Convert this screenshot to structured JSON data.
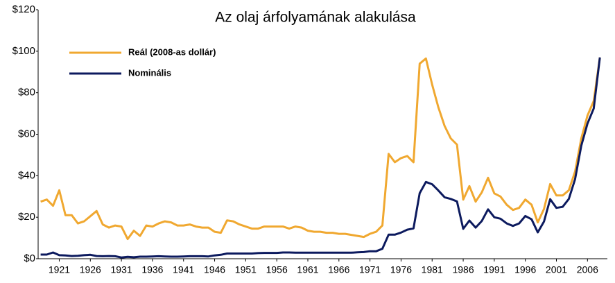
{
  "chart_data": {
    "type": "line",
    "title": "Az olaj árfolyamának alakulása",
    "x": [
      1918,
      1919,
      1920,
      1921,
      1922,
      1923,
      1924,
      1925,
      1926,
      1927,
      1928,
      1929,
      1930,
      1931,
      1932,
      1933,
      1934,
      1935,
      1936,
      1937,
      1938,
      1939,
      1940,
      1941,
      1942,
      1943,
      1944,
      1945,
      1946,
      1947,
      1948,
      1949,
      1950,
      1951,
      1952,
      1953,
      1954,
      1955,
      1956,
      1957,
      1958,
      1959,
      1960,
      1961,
      1962,
      1963,
      1964,
      1965,
      1966,
      1967,
      1968,
      1969,
      1970,
      1971,
      1972,
      1973,
      1974,
      1975,
      1976,
      1977,
      1978,
      1979,
      1980,
      1981,
      1982,
      1983,
      1984,
      1985,
      1986,
      1987,
      1988,
      1989,
      1990,
      1991,
      1992,
      1993,
      1994,
      1995,
      1996,
      1997,
      1998,
      1999,
      2000,
      2001,
      2002,
      2003,
      2004,
      2005,
      2006,
      2007,
      2008
    ],
    "series": [
      {
        "name": "Reál (2008-as dollár)",
        "color": "#f0a830",
        "values": [
          27.5,
          28.5,
          25.5,
          33,
          21,
          21,
          17,
          18,
          20.5,
          23,
          16.5,
          15,
          16,
          15.5,
          9.5,
          13.5,
          11,
          16,
          15.5,
          17,
          18,
          17.5,
          16,
          16,
          16.5,
          15.5,
          15,
          15,
          13,
          12.5,
          18.5,
          18,
          16.5,
          15.5,
          14.5,
          14.5,
          15.5,
          15.5,
          15.5,
          15.5,
          14.5,
          15.5,
          15,
          13.5,
          13,
          13,
          12.5,
          12.5,
          12,
          12,
          11.5,
          11,
          10.5,
          12,
          13,
          16,
          50.5,
          46.5,
          48.5,
          49.5,
          46.5,
          94,
          96.5,
          84,
          73,
          64,
          58,
          55,
          28.5,
          35,
          27.5,
          32,
          39,
          31.5,
          30,
          26,
          23.5,
          24.5,
          28.5,
          26,
          17.5,
          24,
          36,
          30.5,
          30.5,
          33,
          42,
          58,
          69,
          76,
          97
        ]
      },
      {
        "name": "Nominális",
        "color": "#0c1a5e",
        "values": [
          2,
          2,
          3,
          1.7,
          1.6,
          1.3,
          1.4,
          1.7,
          1.9,
          1.3,
          1.2,
          1.3,
          1.2,
          0.6,
          0.9,
          0.7,
          1,
          1,
          1.1,
          1.2,
          1.1,
          1,
          1,
          1.1,
          1.2,
          1.2,
          1.2,
          1.1,
          1.6,
          1.9,
          2.5,
          2.5,
          2.5,
          2.5,
          2.5,
          2.7,
          2.8,
          2.8,
          2.8,
          3,
          3,
          2.9,
          2.9,
          2.9,
          2.9,
          2.9,
          2.9,
          2.9,
          2.9,
          2.9,
          2.9,
          3.1,
          3.2,
          3.6,
          3.6,
          4.8,
          11.6,
          11.6,
          12.6,
          14,
          14.6,
          31.6,
          37,
          35.9,
          32.9,
          29.6,
          28.8,
          27.6,
          14.4,
          18.4,
          15,
          18.2,
          23.8,
          20,
          19.3,
          17,
          15.8,
          17,
          20.6,
          19,
          12.7,
          17.9,
          28.7,
          24.5,
          25,
          28.8,
          38.3,
          54.5,
          65.1,
          72.4,
          97
        ]
      }
    ],
    "xlim": [
      1917.6,
      2009.2
    ],
    "xticks": [
      1921,
      1926,
      1931,
      1936,
      1941,
      1946,
      1951,
      1956,
      1961,
      1966,
      1971,
      1976,
      1981,
      1986,
      1991,
      1996,
      2001,
      2006
    ],
    "ylim": [
      0,
      120
    ],
    "yticks": [
      {
        "value": 0,
        "label": "$0"
      },
      {
        "value": 20,
        "label": "$20"
      },
      {
        "value": 40,
        "label": "$40"
      },
      {
        "value": 60,
        "label": "$60"
      },
      {
        "value": 80,
        "label": "$80"
      },
      {
        "value": 100,
        "label": "$100"
      },
      {
        "value": 120,
        "label": "$120"
      }
    ],
    "legend": "upper left"
  }
}
